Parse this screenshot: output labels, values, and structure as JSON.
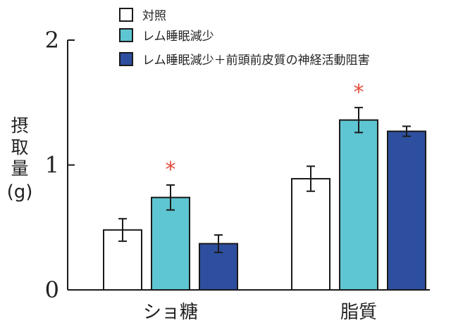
{
  "chart_data": {
    "type": "bar",
    "ylabel": "摂取量(g)",
    "ylabel_chars": [
      "摂",
      "取",
      "量",
      "(g)"
    ],
    "ylim": [
      0,
      2
    ],
    "yticks": [
      0,
      1,
      2
    ],
    "categories": [
      "ショ糖",
      "脂質"
    ],
    "series": [
      {
        "name": "対照",
        "color": "#ffffff",
        "values": [
          0.48,
          0.89
        ],
        "errors": [
          0.09,
          0.1
        ]
      },
      {
        "name": "レム睡眠減少",
        "color": "#5ec6d2",
        "values": [
          0.74,
          1.36
        ],
        "errors": [
          0.1,
          0.1
        ]
      },
      {
        "name": "レム睡眠減少＋前頭前皮質の神経活動阻害",
        "color": "#2e4f9f",
        "values": [
          0.37,
          1.27
        ],
        "errors": [
          0.07,
          0.04
        ]
      }
    ],
    "significance": {
      "symbol": "*",
      "color": "#e64b3c",
      "marks": [
        {
          "category": 0,
          "series": 1
        },
        {
          "category": 1,
          "series": 1
        }
      ]
    },
    "legend_position": "top"
  }
}
